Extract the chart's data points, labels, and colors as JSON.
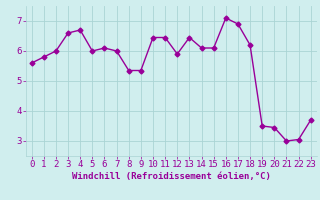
{
  "x": [
    0,
    1,
    2,
    3,
    4,
    5,
    6,
    7,
    8,
    9,
    10,
    11,
    12,
    13,
    14,
    15,
    16,
    17,
    18,
    19,
    20,
    21,
    22,
    23
  ],
  "y": [
    5.6,
    5.8,
    6.0,
    6.6,
    6.7,
    6.0,
    6.1,
    6.0,
    5.35,
    5.35,
    6.45,
    6.45,
    5.9,
    6.45,
    6.1,
    6.1,
    7.1,
    6.9,
    6.2,
    3.5,
    3.45,
    3.0,
    3.05,
    3.7
  ],
  "line_color": "#990099",
  "marker": "D",
  "markersize": 2.5,
  "linewidth": 1.0,
  "background_color": "#d0eeee",
  "grid_color": "#aad4d4",
  "xlabel": "Windchill (Refroidissement éolien,°C)",
  "xlabel_fontsize": 6.5,
  "tick_fontsize": 6.5,
  "ylim": [
    2.5,
    7.5
  ],
  "yticks": [
    3,
    4,
    5,
    6,
    7
  ],
  "xlim": [
    -0.5,
    23.5
  ],
  "xticks": [
    0,
    1,
    2,
    3,
    4,
    5,
    6,
    7,
    8,
    9,
    10,
    11,
    12,
    13,
    14,
    15,
    16,
    17,
    18,
    19,
    20,
    21,
    22,
    23
  ]
}
